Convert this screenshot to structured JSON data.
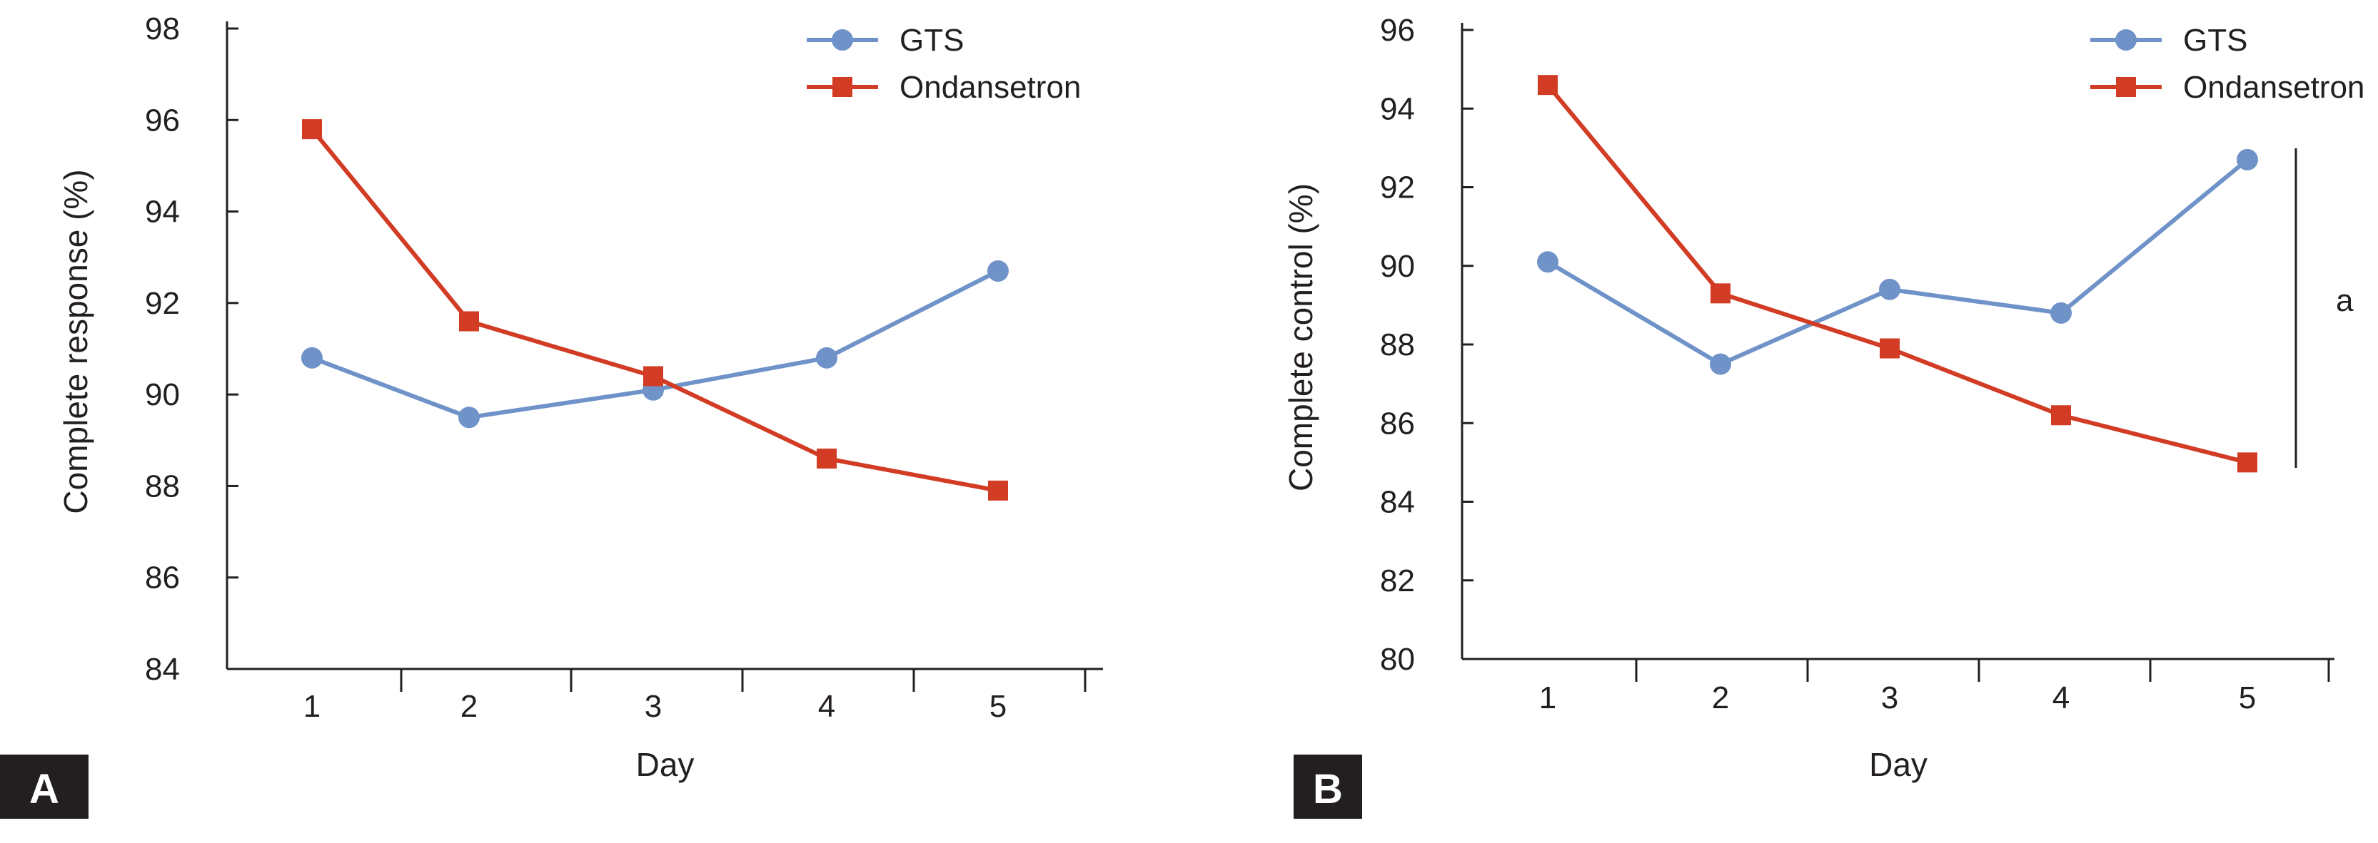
{
  "colors": {
    "GTS": "#6f93c8",
    "Ondansetron": "#d23c24",
    "axis": "#231f20",
    "panel_label_bg": "#231f20"
  },
  "chart_data": [
    {
      "panel": "A",
      "type": "line",
      "xlabel": "Day",
      "ylabel": "Complete response (%)",
      "categories": [
        "1",
        "2",
        "3",
        "4",
        "5"
      ],
      "ylim": [
        84,
        98
      ],
      "yticks": [
        "84",
        "86",
        "88",
        "90",
        "92",
        "94",
        "96",
        "98"
      ],
      "grid": false,
      "legend_position": "top-right",
      "series": [
        {
          "name": "GTS",
          "marker": "circle",
          "values": [
            90.8,
            89.5,
            90.1,
            90.8,
            92.7
          ]
        },
        {
          "name": "Ondansetron",
          "marker": "square",
          "values": [
            95.8,
            91.6,
            90.4,
            88.6,
            87.9
          ]
        }
      ],
      "annotation": ""
    },
    {
      "panel": "B",
      "type": "line",
      "xlabel": "Day",
      "ylabel": "Complete control (%)",
      "categories": [
        "1",
        "2",
        "3",
        "4",
        "5"
      ],
      "ylim": [
        80,
        96
      ],
      "yticks": [
        "80",
        "82",
        "84",
        "86",
        "88",
        "90",
        "92",
        "94",
        "96"
      ],
      "grid": false,
      "legend_position": "top-right",
      "series": [
        {
          "name": "GTS",
          "marker": "circle",
          "values": [
            90.1,
            87.5,
            89.4,
            88.8,
            92.7
          ]
        },
        {
          "name": "Ondansetron",
          "marker": "square",
          "values": [
            94.6,
            89.3,
            87.9,
            86.2,
            85.0
          ]
        }
      ],
      "annotation": "a"
    }
  ]
}
